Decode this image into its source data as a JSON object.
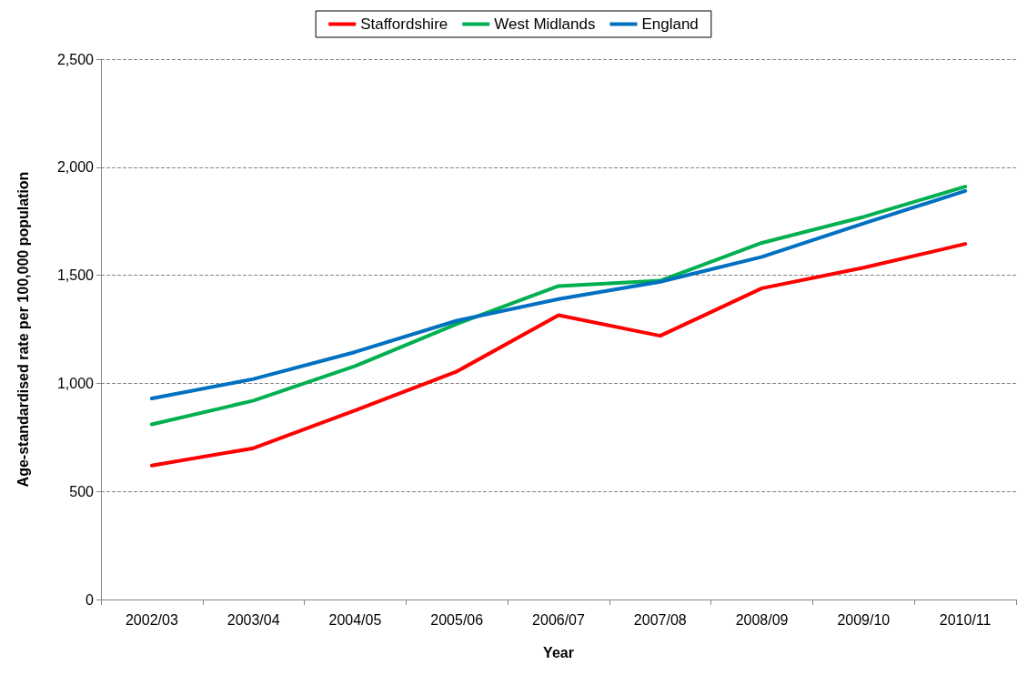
{
  "chart_data": {
    "type": "line",
    "xlabel": "Year",
    "ylabel": "Age-standardised rate per 100,000 population",
    "categories": [
      "2002/03",
      "2003/04",
      "2004/05",
      "2005/06",
      "2006/07",
      "2007/08",
      "2008/09",
      "2009/10",
      "2010/11"
    ],
    "series": [
      {
        "name": "Staffordshire",
        "color": "#ff0000",
        "values": [
          620,
          700,
          875,
          1055,
          1315,
          1220,
          1440,
          1535,
          1645
        ]
      },
      {
        "name": "West Midlands",
        "color": "#00b050",
        "values": [
          810,
          920,
          1080,
          1275,
          1450,
          1475,
          1650,
          1770,
          1910
        ]
      },
      {
        "name": "England",
        "color": "#0070c0",
        "values": [
          930,
          1020,
          1145,
          1290,
          1390,
          1470,
          1585,
          1740,
          1890
        ]
      }
    ],
    "ylim": [
      0,
      2500
    ],
    "yticks": [
      0,
      500,
      {
        "value": 1000,
        "label": "1,000"
      },
      {
        "value": 1500,
        "label": "1,500"
      },
      {
        "value": 2000,
        "label": "2,000"
      },
      {
        "value": 2500,
        "label": "2,500"
      }
    ],
    "grid": "y",
    "legend": "top",
    "marker": "none",
    "line_style": "solid"
  }
}
